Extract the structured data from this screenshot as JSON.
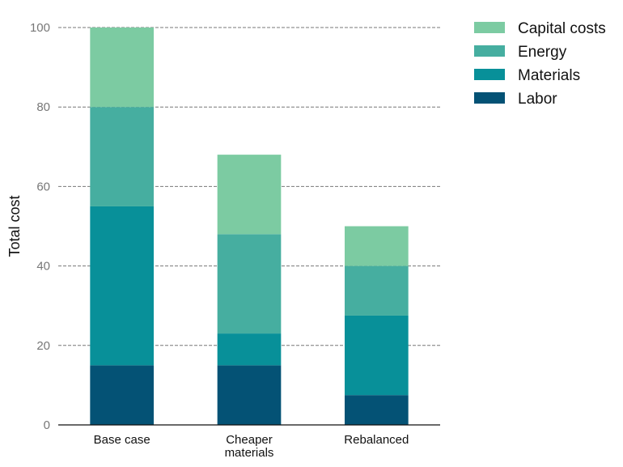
{
  "chart_data": {
    "type": "bar",
    "stacked": true,
    "categories": [
      [
        "Base case"
      ],
      [
        "Cheaper",
        "materials"
      ],
      [
        "Rebalanced"
      ]
    ],
    "series": [
      {
        "name": "Labor",
        "color": "#045275",
        "values": [
          15,
          15,
          7.5
        ]
      },
      {
        "name": "Materials",
        "color": "#089099",
        "values": [
          40,
          8,
          20
        ]
      },
      {
        "name": "Energy",
        "color": "#46AEA0",
        "values": [
          25,
          25,
          12.5
        ]
      },
      {
        "name": "Capital costs",
        "color": "#7CCBA2",
        "values": [
          20,
          20,
          10
        ]
      }
    ],
    "ylabel": "Total cost",
    "ylim": [
      0,
      100
    ],
    "yticks": [
      0,
      20,
      40,
      60,
      80,
      100
    ],
    "grid": "horizontal-dashed",
    "legend": "right-top"
  }
}
